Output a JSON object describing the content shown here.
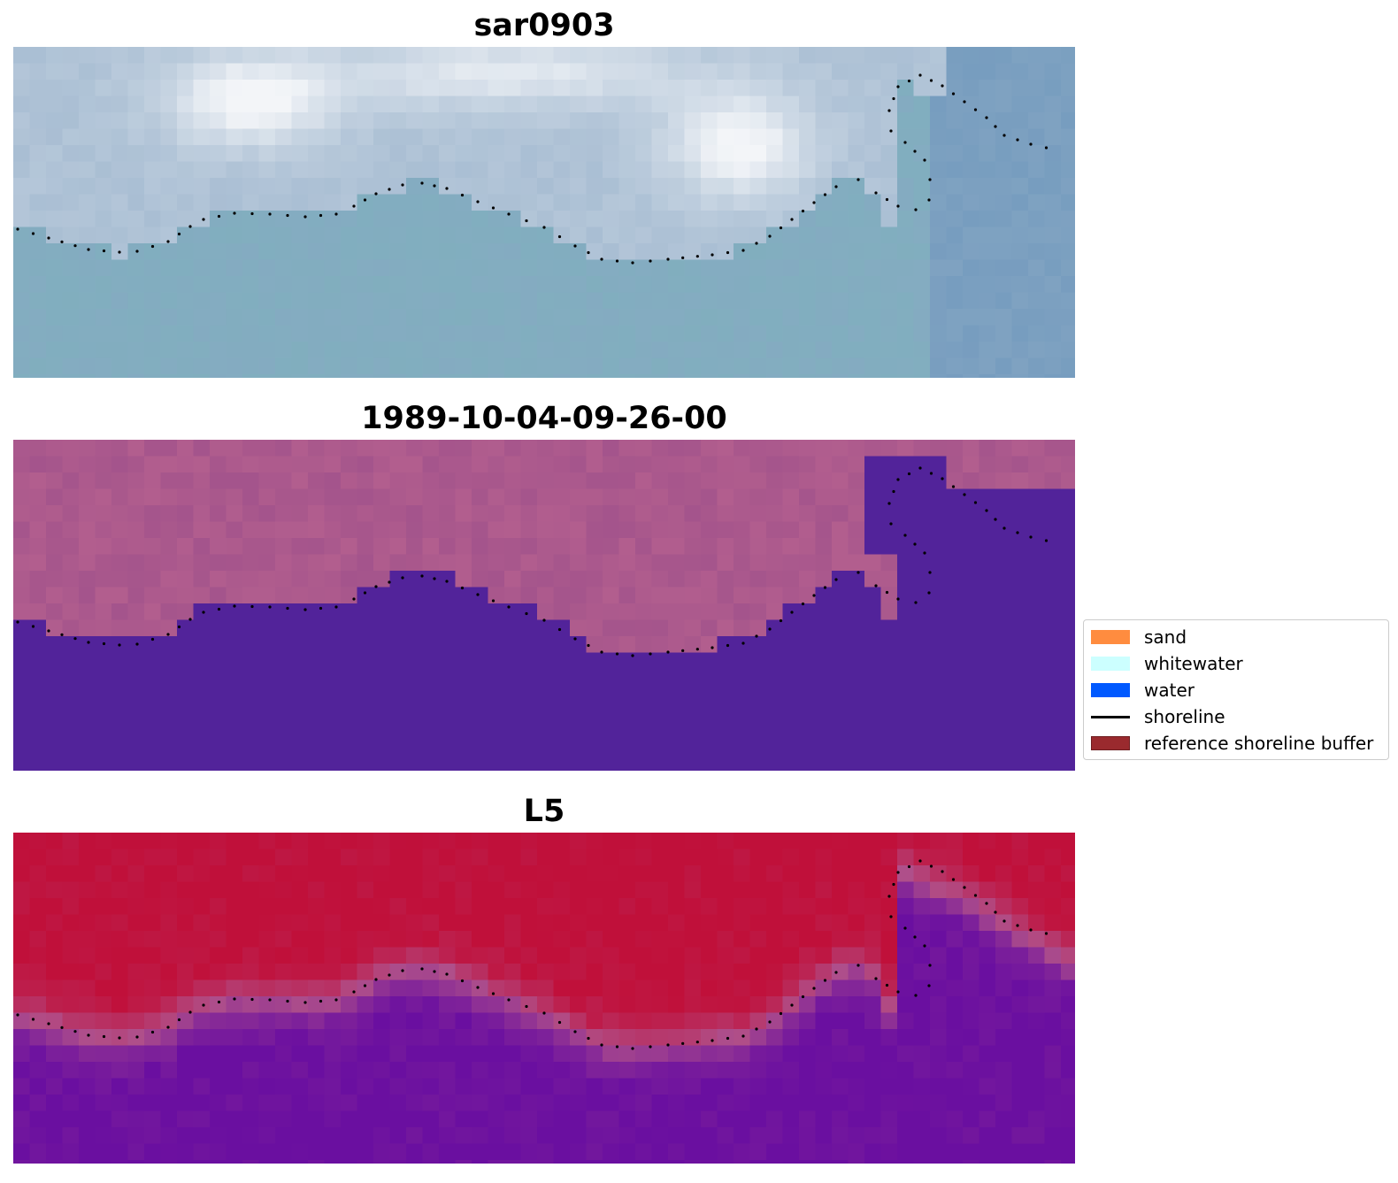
{
  "panels": [
    {
      "id": "top",
      "title": "sar0903"
    },
    {
      "id": "middle",
      "title": "1989-10-04-09-26-00"
    },
    {
      "id": "bottom",
      "title": "L5"
    }
  ],
  "legend": {
    "items": [
      {
        "label": "sand",
        "type": "patch",
        "color": "#ff8c3f"
      },
      {
        "label": "whitewater",
        "type": "patch",
        "color": "#ccffff"
      },
      {
        "label": "water",
        "type": "patch",
        "color": "#0059ff"
      },
      {
        "label": "shoreline",
        "type": "line",
        "color": "#000000"
      },
      {
        "label": "reference shoreline buffer",
        "type": "patch",
        "color": "#9a2a2e"
      }
    ]
  },
  "colors": {
    "sar_light": "#f3f5f8",
    "sar_blue": "#88a8c4",
    "sar_teal": "#7fb0bd",
    "class_land": "#9b4e8a",
    "class_land_light": "#b8628f",
    "class_water": "#52239a",
    "prob_red": "#c0103a",
    "prob_purple": "#6a0fa0",
    "prob_mid": "#b0508a",
    "shoreline_dots": "#000000"
  }
}
